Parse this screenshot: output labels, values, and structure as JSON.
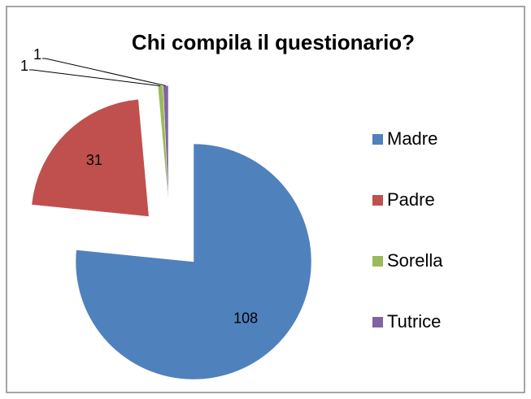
{
  "chart_data": {
    "type": "pie",
    "title": "Chi compila il questionario?",
    "categories": [
      "Madre",
      "Padre",
      "Sorella",
      "Tutrice"
    ],
    "values": [
      108,
      31,
      1,
      1
    ],
    "colors": [
      "#4f81bd",
      "#c0504d",
      "#9bbb59",
      "#8064a2"
    ],
    "legend": "right"
  }
}
